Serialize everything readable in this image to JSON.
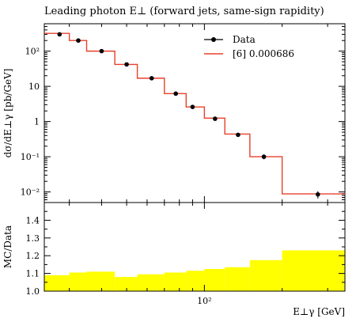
{
  "chart_data": [
    {
      "type": "line",
      "title": "Leading photon E⊥ (forward jets, same-sign rapidity)",
      "ylabel": "dσ/dE⊥γ [pb/GeV]",
      "xlabel": "",
      "x_scale": "log",
      "y_scale": "log",
      "xlim": [
        24,
        350
      ],
      "ylim": [
        0.005,
        600
      ],
      "yticks": [
        {
          "value": 0.01,
          "label": "10⁻²"
        },
        {
          "value": 0.1,
          "label": "10⁻¹"
        },
        {
          "value": 1,
          "label": "1"
        },
        {
          "value": 10,
          "label": "10"
        },
        {
          "value": 100,
          "label": "10²"
        }
      ],
      "legend_position": "top-right",
      "series": [
        {
          "name": "Data",
          "style": "points-with-errors",
          "color": "#000000",
          "points": [
            {
              "x": 27.5,
              "y": 300,
              "err": 30
            },
            {
              "x": 32.5,
              "y": 200,
              "err": 20
            },
            {
              "x": 40,
              "y": 100,
              "err": 10
            },
            {
              "x": 50,
              "y": 42,
              "err": 4
            },
            {
              "x": 62.5,
              "y": 17,
              "err": 2
            },
            {
              "x": 77.5,
              "y": 6.2,
              "err": 0.6
            },
            {
              "x": 90,
              "y": 2.6,
              "err": 0.3
            },
            {
              "x": 110,
              "y": 1.2,
              "err": 0.15
            },
            {
              "x": 135,
              "y": 0.42,
              "err": 0.05
            },
            {
              "x": 170,
              "y": 0.1,
              "err": 0.015
            },
            {
              "x": 275,
              "y": 0.0085,
              "err": 0.002
            }
          ]
        },
        {
          "name": "[6] 0.000686",
          "style": "step",
          "color": "#e8402a",
          "bins": [
            {
              "lo": 24,
              "hi": 30,
              "y": 320
            },
            {
              "lo": 30,
              "hi": 35,
              "y": 200
            },
            {
              "lo": 35,
              "hi": 45,
              "y": 100
            },
            {
              "lo": 45,
              "hi": 55,
              "y": 42
            },
            {
              "lo": 55,
              "hi": 70,
              "y": 17
            },
            {
              "lo": 70,
              "hi": 85,
              "y": 6.2
            },
            {
              "lo": 85,
              "hi": 100,
              "y": 2.6
            },
            {
              "lo": 100,
              "hi": 120,
              "y": 1.25
            },
            {
              "lo": 120,
              "hi": 150,
              "y": 0.44
            },
            {
              "lo": 150,
              "hi": 200,
              "y": 0.1
            },
            {
              "lo": 200,
              "hi": 350,
              "y": 0.0088
            }
          ]
        }
      ]
    },
    {
      "type": "area",
      "ylabel": "MC/Data",
      "xlabel": "E⊥γ [GeV]",
      "x_scale": "log",
      "xlim": [
        24,
        350
      ],
      "ylim": [
        1.0,
        1.5
      ],
      "yticks": [
        {
          "value": 1.0,
          "label": "1.0"
        },
        {
          "value": 1.1,
          "label": "1.1"
        },
        {
          "value": 1.2,
          "label": "1.2"
        },
        {
          "value": 1.3,
          "label": "1.3"
        },
        {
          "value": 1.4,
          "label": "1.4"
        }
      ],
      "xticks": [
        {
          "value": 100,
          "label": "10²"
        }
      ],
      "band_color": "#ffff00",
      "reference_line": 1.0,
      "bins": [
        {
          "lo": 24,
          "hi": 30,
          "y": 1.09
        },
        {
          "lo": 30,
          "hi": 35,
          "y": 1.105
        },
        {
          "lo": 35,
          "hi": 45,
          "y": 1.11
        },
        {
          "lo": 45,
          "hi": 55,
          "y": 1.08
        },
        {
          "lo": 55,
          "hi": 70,
          "y": 1.095
        },
        {
          "lo": 70,
          "hi": 85,
          "y": 1.105
        },
        {
          "lo": 85,
          "hi": 100,
          "y": 1.115
        },
        {
          "lo": 100,
          "hi": 120,
          "y": 1.125
        },
        {
          "lo": 120,
          "hi": 150,
          "y": 1.135
        },
        {
          "lo": 150,
          "hi": 200,
          "y": 1.175
        },
        {
          "lo": 200,
          "hi": 350,
          "y": 1.23
        }
      ]
    }
  ]
}
